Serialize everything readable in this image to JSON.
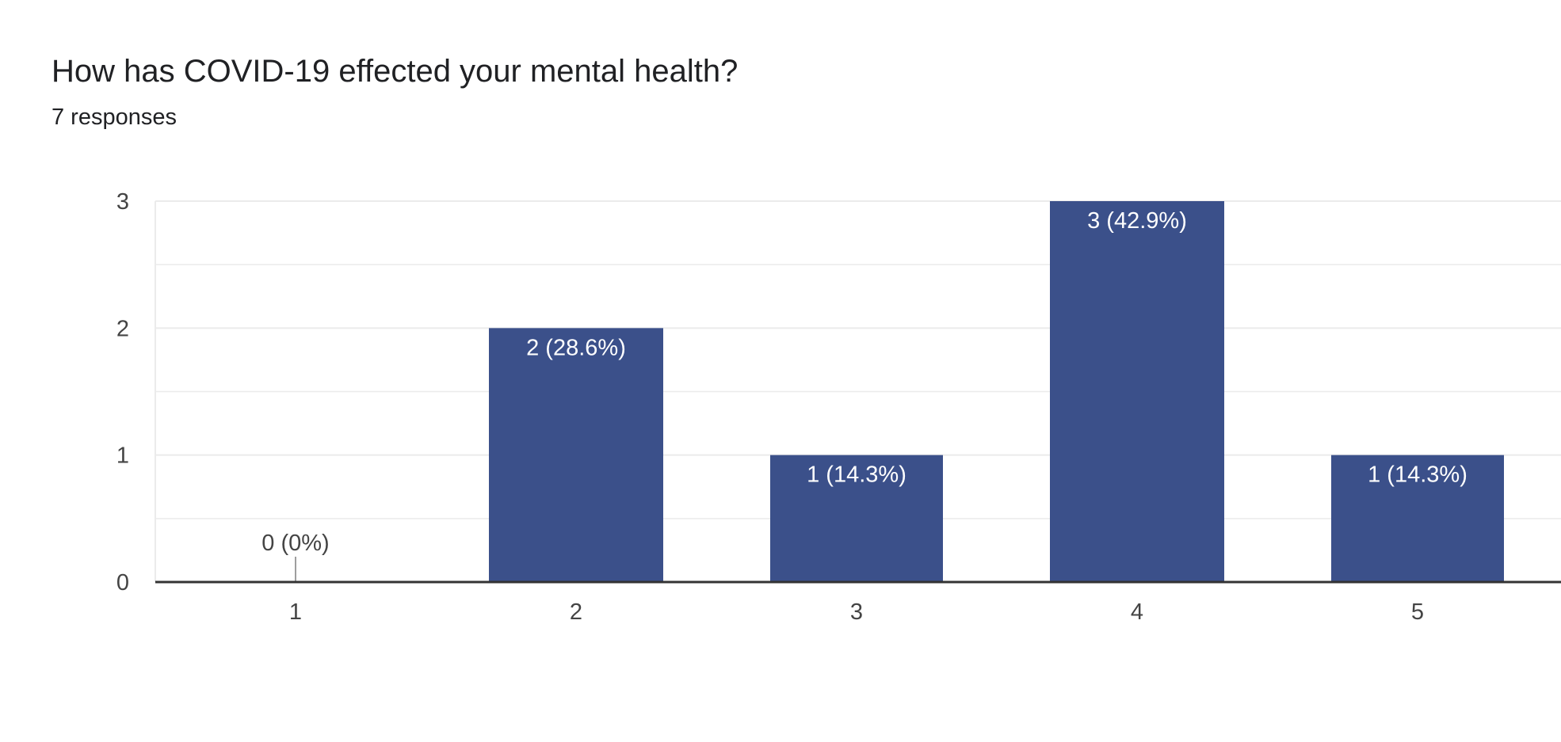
{
  "form": {
    "question_title": "How has COVID-19 effected your mental health?",
    "response_count": "7 responses"
  },
  "chart_data": {
    "type": "bar",
    "categories": [
      "1",
      "2",
      "3",
      "4",
      "5"
    ],
    "values": [
      0,
      2,
      1,
      3,
      1
    ],
    "data_labels": [
      "0 (0%)",
      "2 (28.6%)",
      "1 (14.3%)",
      "3 (42.9%)",
      "1 (14.3%)"
    ],
    "ylim": [
      0,
      3
    ],
    "y_ticks": [
      0,
      1,
      2,
      3
    ],
    "grid": true,
    "bar_color": "#3b508a",
    "gridline_color": "#ebebeb",
    "axis_color": "#333333"
  }
}
